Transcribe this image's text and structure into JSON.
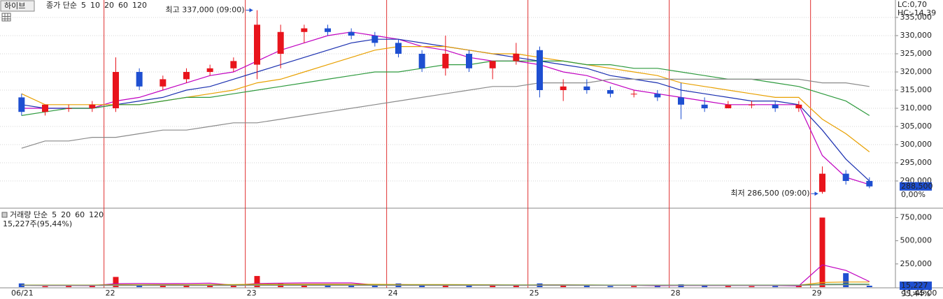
{
  "header": {
    "stock": "하이브"
  },
  "chart_data": [
    {
      "type": "candlestick",
      "legend_prefix": "종가 단순",
      "categories": [
        "06/21",
        null,
        null,
        null,
        "22",
        null,
        null,
        null,
        null,
        null,
        "23",
        null,
        null,
        null,
        null,
        null,
        "24",
        null,
        null,
        null,
        null,
        null,
        "25",
        null,
        null,
        null,
        null,
        null,
        "28",
        null,
        null,
        null,
        null,
        null,
        "29",
        null,
        null
      ],
      "open": [
        313000,
        309000,
        310000,
        310000,
        310000,
        320000,
        316000,
        318000,
        320000,
        321000,
        322000,
        325000,
        331000,
        332000,
        331000,
        330000,
        328000,
        325000,
        321000,
        325000,
        321000,
        323000,
        326000,
        315000,
        316000,
        315000,
        314000,
        314000,
        313000,
        311000,
        310000,
        311000,
        311000,
        310000,
        287000,
        292000,
        290000
      ],
      "high": [
        314000,
        311000,
        311000,
        312000,
        324000,
        321000,
        319000,
        321000,
        322000,
        324000,
        337000,
        333000,
        333000,
        333000,
        332000,
        331000,
        329000,
        326000,
        330000,
        326000,
        323000,
        328000,
        327000,
        318000,
        318000,
        316000,
        315000,
        315000,
        317000,
        313000,
        312000,
        312000,
        312000,
        312000,
        294000,
        293000,
        291000
      ],
      "low": [
        308000,
        308000,
        309000,
        309000,
        309000,
        315000,
        315000,
        317000,
        319000,
        320000,
        318000,
        321000,
        328000,
        330000,
        329000,
        327000,
        324000,
        320000,
        319000,
        320000,
        318000,
        322000,
        313000,
        312000,
        314000,
        313000,
        313000,
        312000,
        307000,
        309000,
        310000,
        310000,
        309000,
        309000,
        286500,
        289000,
        288000
      ],
      "close": [
        309000,
        311000,
        310000,
        311000,
        320000,
        316000,
        318000,
        320000,
        321000,
        323000,
        333000,
        331000,
        332000,
        331000,
        330000,
        328000,
        325000,
        321000,
        325000,
        321000,
        323000,
        325000,
        315000,
        316000,
        315000,
        314000,
        314000,
        313000,
        311000,
        310000,
        311000,
        311000,
        310000,
        311000,
        292000,
        290000,
        288500
      ],
      "color_up": "#e8141c",
      "color_down": "#1e4fd1",
      "series": [
        {
          "name": "5",
          "color": "#c000c0",
          "values": [
            310000,
            310000,
            310000,
            310000,
            312000,
            313000,
            315000,
            317000,
            319000,
            320000,
            323000,
            326000,
            328000,
            330000,
            331000,
            330000,
            329000,
            327000,
            326000,
            324000,
            323000,
            323000,
            322000,
            320000,
            319000,
            317000,
            315000,
            314000,
            313000,
            312000,
            311000,
            311000,
            311000,
            311000,
            297000,
            291000,
            289000
          ]
        },
        {
          "name": "10",
          "color": "#1a2fb0",
          "values": [
            311000,
            310000,
            310000,
            310000,
            311000,
            312000,
            313000,
            315000,
            316000,
            318000,
            320000,
            322000,
            324000,
            326000,
            328000,
            329000,
            329000,
            328000,
            327000,
            326000,
            325000,
            324000,
            323000,
            322000,
            321000,
            319000,
            318000,
            317000,
            315000,
            314000,
            313000,
            312000,
            312000,
            311000,
            304000,
            296000,
            290000
          ]
        },
        {
          "name": "20",
          "color": "#e8a000",
          "values": [
            314000,
            311000,
            311000,
            311000,
            311000,
            311000,
            312000,
            313000,
            314000,
            315000,
            317000,
            318000,
            320000,
            322000,
            324000,
            326000,
            327000,
            327000,
            327000,
            326000,
            325000,
            325000,
            324000,
            323000,
            322000,
            321000,
            320000,
            319000,
            317000,
            316000,
            315000,
            314000,
            313000,
            313000,
            307000,
            303000,
            298000
          ]
        },
        {
          "name": "60",
          "color": "#2e9a3e",
          "values": [
            308000,
            309000,
            310000,
            310000,
            311000,
            311000,
            312000,
            313000,
            313000,
            314000,
            315000,
            316000,
            317000,
            318000,
            319000,
            320000,
            320000,
            321000,
            322000,
            322000,
            323000,
            323000,
            323000,
            323000,
            322000,
            322000,
            321000,
            321000,
            320000,
            319000,
            318000,
            318000,
            317000,
            316000,
            314000,
            312000,
            308000
          ]
        },
        {
          "name": "120",
          "color": "#8a8a8a",
          "values": [
            299000,
            301000,
            301000,
            302000,
            302000,
            303000,
            304000,
            304000,
            305000,
            306000,
            306000,
            307000,
            308000,
            309000,
            310000,
            311000,
            312000,
            313000,
            314000,
            315000,
            316000,
            316000,
            317000,
            317000,
            317000,
            318000,
            318000,
            318000,
            318000,
            318000,
            318000,
            318000,
            318000,
            318000,
            317000,
            317000,
            316000
          ]
        }
      ],
      "ylim": [
        282700,
        339800
      ],
      "yticks": [
        {
          "value": 290000,
          "label": "290,000"
        },
        {
          "value": 295000,
          "label": "295,000"
        },
        {
          "value": 300000,
          "label": "300,000"
        },
        {
          "value": 305000,
          "label": "305,000"
        },
        {
          "value": 310000,
          "label": "310,000"
        },
        {
          "value": 315000,
          "label": "315,000"
        },
        {
          "value": 320000,
          "label": "320,000"
        },
        {
          "value": 325000,
          "label": "325,000"
        },
        {
          "value": 330000,
          "label": "330,000"
        },
        {
          "value": 335000,
          "label": "335,000"
        }
      ],
      "grid": true,
      "annotations": [
        {
          "label": "최고 337,000 (09:00)",
          "value": 337000
        },
        {
          "label": "최저 286,500 (09:00)",
          "value": 286500
        }
      ],
      "current": {
        "value": 288500,
        "label": "288,500"
      },
      "change_label": "0,00%",
      "lc_label": "LC:0,70",
      "hc_label": "HC:-14,39"
    },
    {
      "type": "bar",
      "legend_prefix": "거래량 단순",
      "summary": "15,227주(95,44%)",
      "values": [
        40000,
        10000,
        12000,
        14000,
        110000,
        30000,
        20000,
        15000,
        18000,
        20000,
        120000,
        40000,
        25000,
        20000,
        18000,
        15000,
        40000,
        20000,
        25000,
        15000,
        15000,
        20000,
        40000,
        20000,
        15000,
        12000,
        12000,
        14000,
        30000,
        15000,
        12000,
        10000,
        12000,
        15000,
        750000,
        150000,
        15227
      ],
      "series": [
        {
          "name": "5",
          "color": "#c000c0",
          "values": [
            20000,
            18000,
            17000,
            16000,
            37000,
            40000,
            38000,
            39000,
            43000,
            21000,
            39000,
            43000,
            45000,
            45000,
            45000,
            24000,
            28000,
            24000,
            24000,
            23000,
            23000,
            19000,
            23000,
            23000,
            22000,
            20000,
            20000,
            15000,
            17000,
            17000,
            17000,
            17000,
            17000,
            13000,
            240000,
            180000,
            60000
          ]
        },
        {
          "name": "20",
          "color": "#e8a000",
          "values": [
            22000,
            22000,
            22000,
            22000,
            26000,
            26000,
            26000,
            26000,
            27000,
            27000,
            31000,
            31000,
            31000,
            31000,
            30000,
            30000,
            28000,
            28000,
            27000,
            26000,
            25000,
            24000,
            24000,
            24000,
            23000,
            22000,
            22000,
            22000,
            22000,
            21000,
            21000,
            21000,
            21000,
            21000,
            50000,
            55000,
            55000
          ]
        },
        {
          "name": "60",
          "color": "#2e9a3e",
          "values": [
            20000,
            20000,
            20000,
            20000,
            21000,
            21000,
            21000,
            21000,
            21000,
            21000,
            22000,
            22000,
            22000,
            22000,
            22000,
            22000,
            22000,
            22000,
            22000,
            22000,
            22000,
            22000,
            22000,
            22000,
            22000,
            21000,
            21000,
            21000,
            21000,
            21000,
            21000,
            21000,
            21000,
            21000,
            30000,
            32000,
            32000
          ]
        },
        {
          "name": "120",
          "color": "#8a8a8a",
          "values": [
            18000,
            18000,
            18000,
            18000,
            18000,
            18000,
            18000,
            18000,
            18000,
            18000,
            19000,
            19000,
            19000,
            19000,
            19000,
            19000,
            19000,
            19000,
            19000,
            19000,
            19000,
            19000,
            19000,
            19000,
            19000,
            19000,
            19000,
            19000,
            19000,
            19000,
            19000,
            19000,
            19000,
            19000,
            24000,
            25000,
            25000
          ]
        }
      ],
      "ylim": [
        0,
        836000
      ],
      "yticks": [
        {
          "value": 250000,
          "label": "250,000"
        },
        {
          "value": 500000,
          "label": "500,000"
        },
        {
          "value": 750000,
          "label": "750,000"
        }
      ],
      "current": {
        "value": 15227,
        "label": "15,227"
      },
      "change_label": "95,44%",
      "x_end_label": "11:45:00"
    }
  ]
}
